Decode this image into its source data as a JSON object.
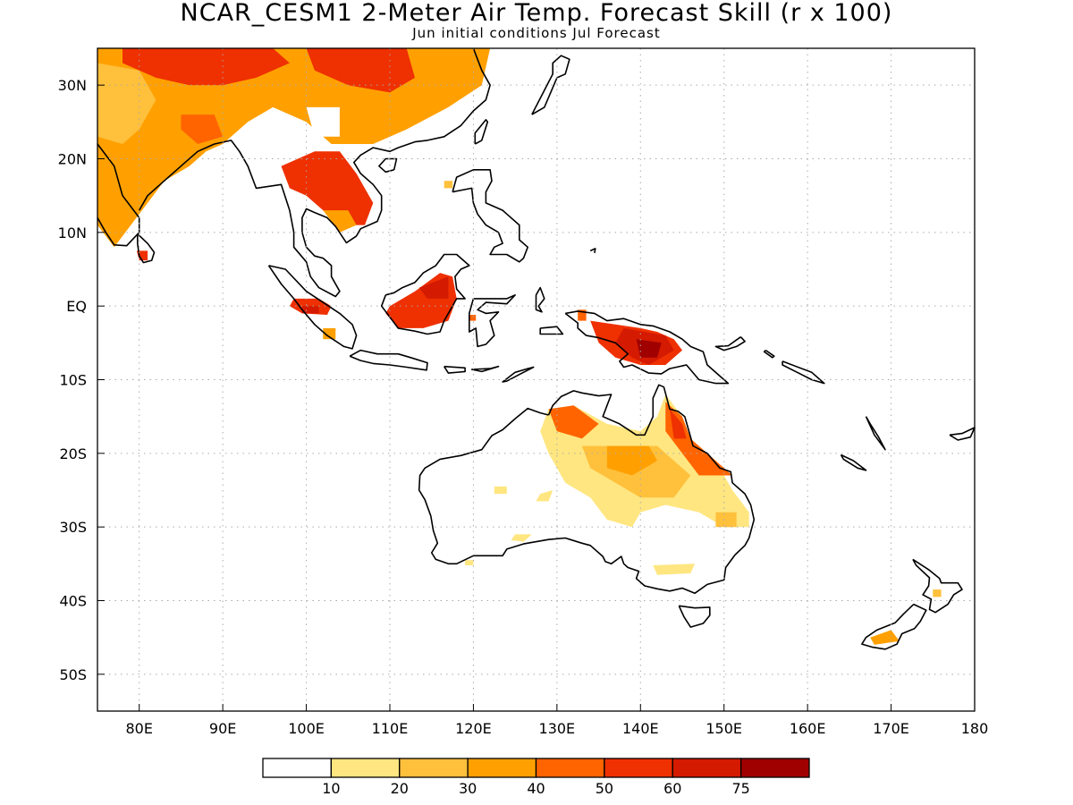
{
  "title": "NCAR_CESM1 2-Meter Air Temp. Forecast Skill (r x 100)",
  "subtitle": "Jun initial conditions  Jul Forecast",
  "map": {
    "lon_range": [
      75,
      180
    ],
    "lat_range": [
      -55,
      35
    ],
    "grid": "dotted",
    "lon_ticks": [
      {
        "value": 80,
        "label": "80E"
      },
      {
        "value": 90,
        "label": "90E"
      },
      {
        "value": 100,
        "label": "100E"
      },
      {
        "value": 110,
        "label": "110E"
      },
      {
        "value": 120,
        "label": "120E"
      },
      {
        "value": 130,
        "label": "130E"
      },
      {
        "value": 140,
        "label": "140E"
      },
      {
        "value": 150,
        "label": "150E"
      },
      {
        "value": 160,
        "label": "160E"
      },
      {
        "value": 170,
        "label": "170E"
      },
      {
        "value": 180,
        "label": "180"
      }
    ],
    "lat_ticks": [
      {
        "value": 30,
        "label": "30N"
      },
      {
        "value": 20,
        "label": "20N"
      },
      {
        "value": 10,
        "label": "10N"
      },
      {
        "value": 0,
        "label": "EQ"
      },
      {
        "value": -10,
        "label": "10S"
      },
      {
        "value": -20,
        "label": "20S"
      },
      {
        "value": -30,
        "label": "30S"
      },
      {
        "value": -40,
        "label": "40S"
      },
      {
        "value": -50,
        "label": "50S"
      }
    ]
  },
  "colorbar": {
    "colors": [
      "#ffffff",
      "#ffe680",
      "#ffc03c",
      "#ffa000",
      "#ff6400",
      "#ef3000",
      "#d41a00",
      "#a00000"
    ],
    "labels": [
      "10",
      "20",
      "30",
      "40",
      "50",
      "60",
      "75"
    ]
  },
  "colors": {
    "coast": "#000000",
    "grid": "#aaaaaa"
  }
}
